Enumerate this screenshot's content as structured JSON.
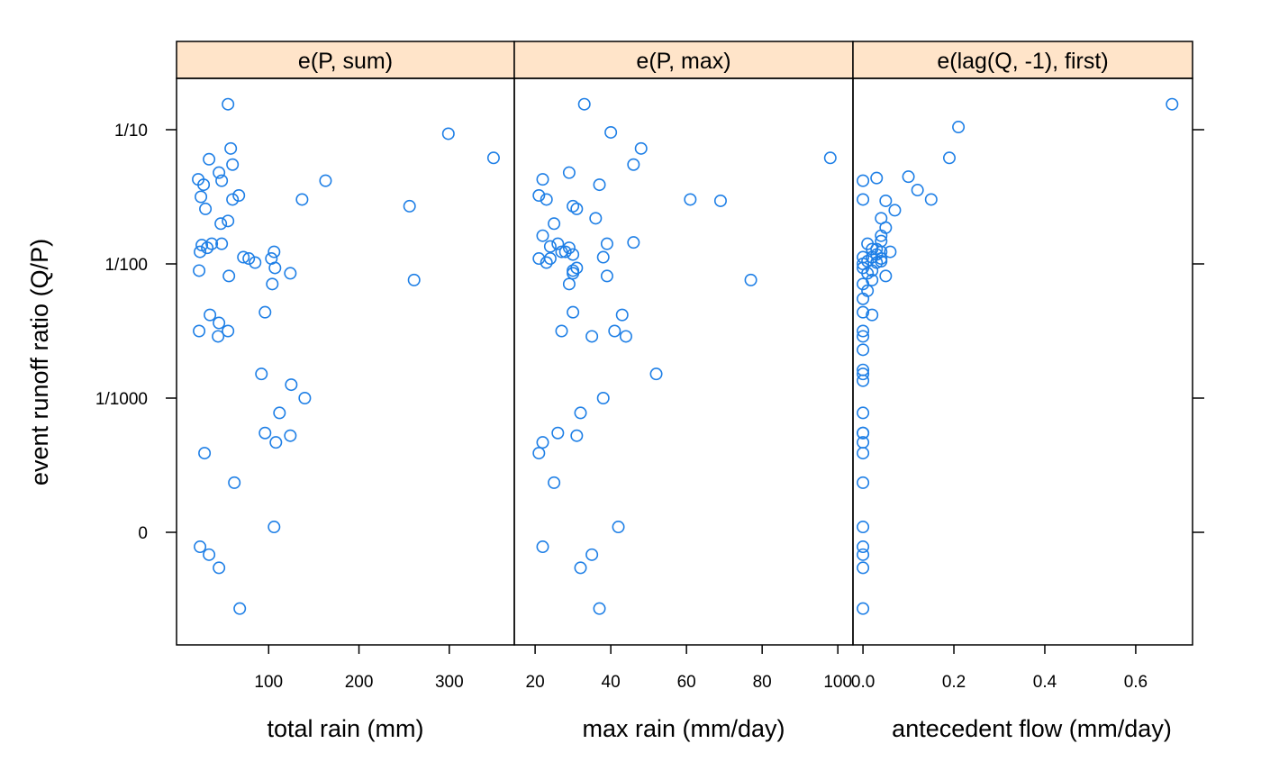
{
  "chart_data": {
    "type": "scatter",
    "layout": "trellis-3-panels",
    "ylabel": "event runoff ratio (Q/P)",
    "y_scale": "log-like (0 at bottom)",
    "y_ticks": [
      {
        "label": "1/10",
        "value": 0.1
      },
      {
        "label": "1/100",
        "value": 0.01
      },
      {
        "label": "1/1000",
        "value": 0.001
      },
      {
        "label": "0",
        "value": 0
      }
    ],
    "series_color": "#1e7fe6",
    "strip_color": "#ffe4c9",
    "panels": [
      {
        "strip": "e(P, sum)",
        "xlabel": "total rain (mm)",
        "xlim": [
          -2,
          372
        ],
        "xticks": [
          {
            "label": "100",
            "value": 100
          },
          {
            "label": "200",
            "value": 200
          },
          {
            "label": "300",
            "value": 300
          }
        ],
        "y_log10": [
          -0.81,
          -1.14,
          -1.26,
          -1.32,
          -1.37,
          -1.22,
          -1.49,
          -1.38,
          -1.59,
          -1.7,
          -1.85,
          -1.5,
          -1.41,
          -1.68,
          -1.52,
          -1.86,
          -1.91,
          -2.05,
          -1.85,
          -1.88,
          -1.95,
          -1.96,
          -1.91,
          -2.09,
          -2.15,
          -2.36,
          -1.99,
          -2.54,
          -2.44,
          -2.5,
          -2.38,
          -2.03,
          -2.07,
          -2.9,
          -3.0,
          -3.33,
          -3.11,
          -2.5,
          -3.41,
          -3.26,
          -3.28,
          -3.96,
          -3.63,
          -2.82,
          -1.96,
          -1.52,
          -1.38,
          -1.57,
          -1.03,
          -1.21,
          -2.12
        ],
        "y_zero_index": [
          -0.11,
          -0.17,
          -0.27,
          -0.58
        ],
        "x": [
          55,
          58,
          60,
          45,
          22,
          34,
          67,
          48,
          30,
          47,
          37,
          25,
          28,
          55,
          60,
          26,
          24,
          23,
          48,
          32,
          72,
          78,
          106,
          56,
          104,
          96,
          85,
          44,
          45,
          55,
          35,
          107,
          124,
          125,
          140,
          108,
          112,
          23,
          29,
          96,
          124,
          106,
          62,
          92,
          103,
          137,
          163,
          256,
          299,
          349,
          261
        ],
        "x_zero": [
          24,
          34,
          45,
          68
        ]
      },
      {
        "strip": "e(P, max)",
        "xlabel": "max rain (mm/day)",
        "xlim": [
          14.5,
          104
        ],
        "xticks": [
          {
            "label": "20",
            "value": 20
          },
          {
            "label": "40",
            "value": 40
          },
          {
            "label": "60",
            "value": 60
          },
          {
            "label": "80",
            "value": 80
          },
          {
            "label": "100",
            "value": 100
          }
        ],
        "y_log10": [
          -0.81,
          -1.02,
          -1.14,
          -1.26,
          -1.32,
          -1.37,
          -1.41,
          -1.49,
          -1.52,
          -1.57,
          -1.59,
          -1.66,
          -1.7,
          -1.79,
          -1.85,
          -1.88,
          -1.91,
          -1.91,
          -1.96,
          -1.96,
          -2.03,
          -2.07,
          -2.15,
          -2.05,
          -1.99,
          -2.09,
          -2.36,
          -2.5,
          -2.54,
          -2.54,
          -2.5,
          -2.38,
          -2.82,
          -3.0,
          -3.26,
          -3.33,
          -3.11,
          -3.41,
          -3.63,
          -3.28,
          -1.85,
          -1.84,
          -1.95,
          -1.93,
          -1.87,
          -1.52,
          -1.53,
          -3.96,
          -1.21,
          -2.12
        ],
        "y_zero_index": [
          -0.11,
          -0.17,
          -0.27,
          -0.58
        ],
        "x": [
          33,
          40,
          48,
          46,
          29,
          22,
          37,
          21,
          23,
          30,
          31,
          36,
          25,
          22,
          26,
          29,
          27,
          28,
          21,
          24,
          31,
          30,
          29,
          30,
          23,
          39,
          30,
          27,
          44,
          35,
          41,
          43,
          52,
          38,
          26,
          22,
          32,
          21,
          25,
          31,
          39,
          46,
          38,
          30,
          24,
          61,
          69,
          42,
          98,
          77
        ],
        "x_zero": [
          22,
          35,
          32,
          37
        ]
      },
      {
        "strip": "e(lag(Q, -1), first)",
        "xlabel": "antecedent flow (mm/day)",
        "xlim": [
          -0.022,
          0.725
        ],
        "xticks": [
          {
            "label": "0.0",
            "value": 0.0
          },
          {
            "label": "0.2",
            "value": 0.2
          },
          {
            "label": "0.4",
            "value": 0.4
          },
          {
            "label": "0.6",
            "value": 0.6
          }
        ],
        "y_log10": [
          -0.81,
          -0.98,
          -1.21,
          -1.35,
          -1.45,
          -1.52,
          -1.53,
          -1.6,
          -1.66,
          -1.73,
          -1.79,
          -1.83,
          -1.85,
          -1.89,
          -1.89,
          -1.91,
          -1.91,
          -1.93,
          -1.95,
          -1.96,
          -1.98,
          -1.98,
          -1.99,
          -2.03,
          -2.05,
          -2.07,
          -2.09,
          -2.12,
          -2.15,
          -2.2,
          -2.26,
          -2.36,
          -2.38,
          -2.5,
          -2.54,
          -2.64,
          -2.82,
          -2.87,
          -3.11,
          -3.26,
          -3.26,
          -3.33,
          -3.41,
          -3.63,
          -2.0,
          -1.52,
          -1.36,
          -1.38,
          -3.96,
          -2.79,
          -1.95
        ],
        "y_zero_index": [
          -0.11,
          -0.17,
          -0.27,
          -0.58
        ],
        "x": [
          0.68,
          0.21,
          0.19,
          0.1,
          0.12,
          0.15,
          0.05,
          0.07,
          0.04,
          0.05,
          0.04,
          0.04,
          0.01,
          0.02,
          0.03,
          0.04,
          0.06,
          0.03,
          0.02,
          0.04,
          0.01,
          0.04,
          0.03,
          0.0,
          0.02,
          0.01,
          0.05,
          0.02,
          0.0,
          0.01,
          0.0,
          0.0,
          0.02,
          0.0,
          0.0,
          0.0,
          0.0,
          0.0,
          0.0,
          0.0,
          0.0,
          0.0,
          0.0,
          0.0,
          0.0,
          0.0,
          0.03,
          0.0,
          0.0,
          0.0,
          0.0
        ],
        "x_zero": [
          0.0,
          0.0,
          0.0,
          0.0
        ]
      }
    ]
  }
}
